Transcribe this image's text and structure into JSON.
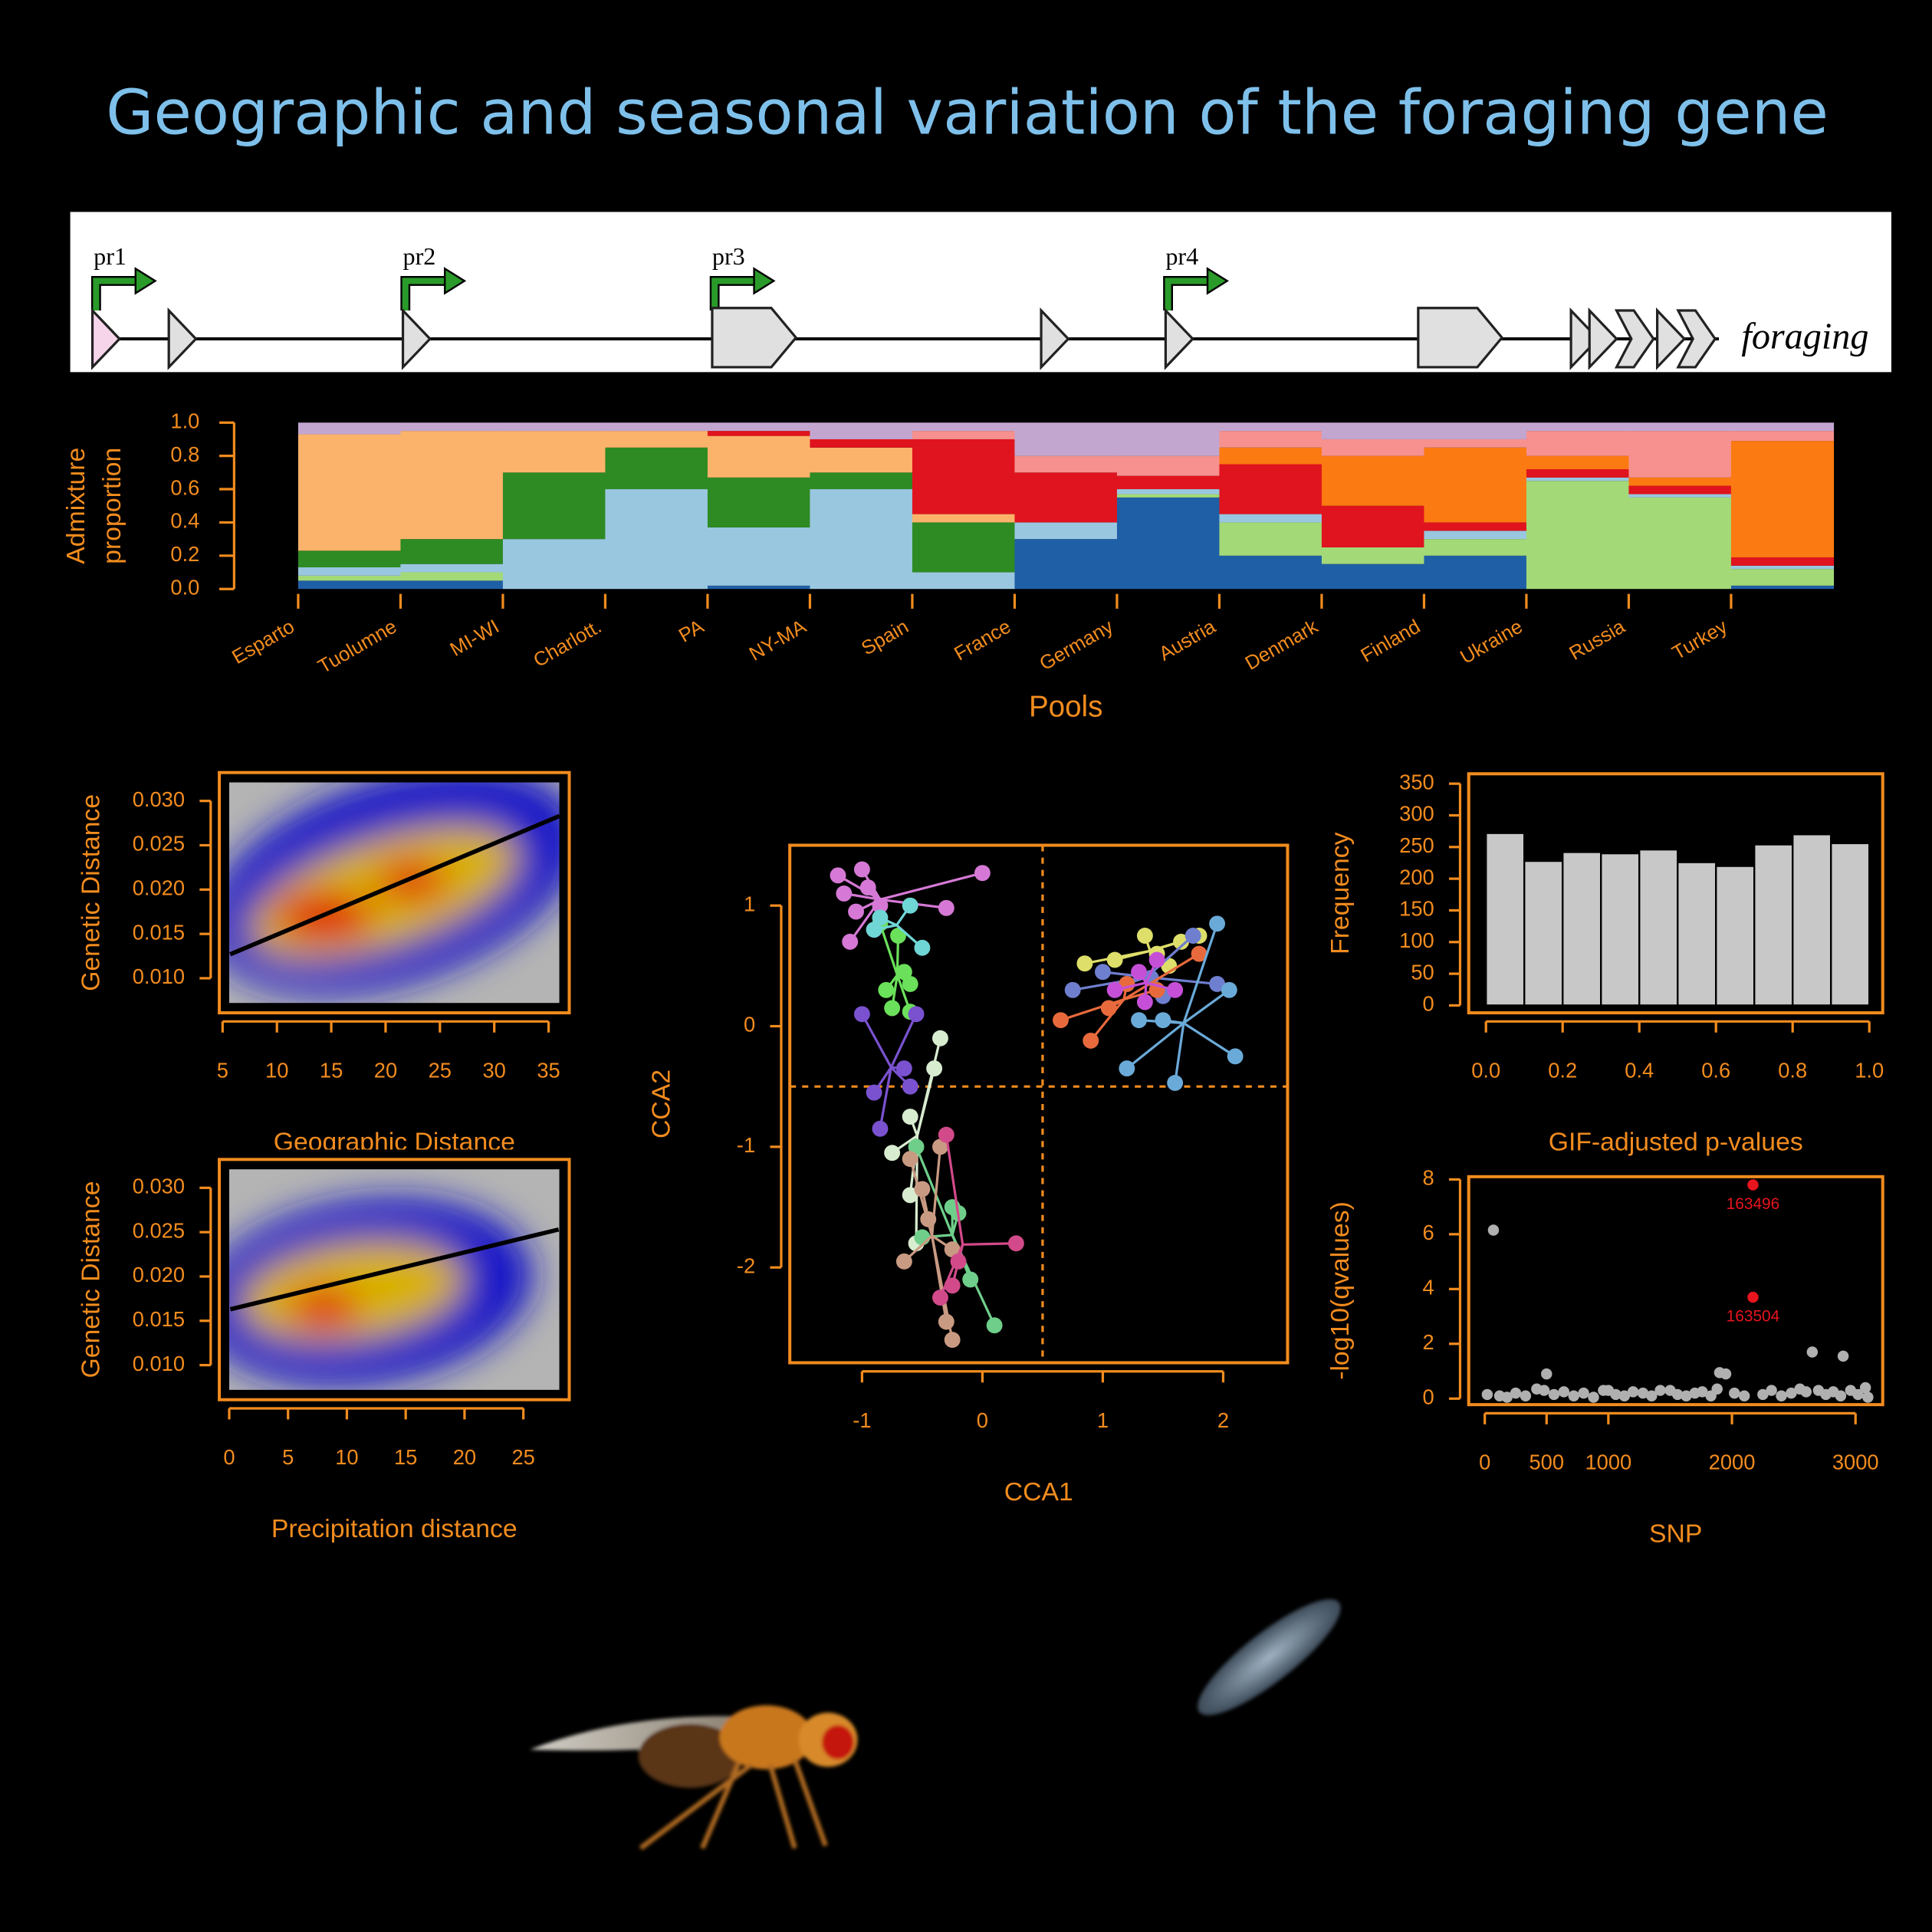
{
  "title": "Geographic and seasonal variation of the foraging gene",
  "gene": {
    "promoters": [
      "pr1",
      "pr2",
      "pr3",
      "pr4"
    ],
    "name": "foraging"
  },
  "chart_data": [
    {
      "type": "bar",
      "stacked": true,
      "xlabel": "Pools",
      "ylabel": [
        "Admixture",
        "proportion"
      ],
      "categories": [
        "Esparto",
        "Tuolumne",
        "MI-WI",
        "Charlott.",
        "PA",
        "NY-MA",
        "Spain",
        "France",
        "Germany",
        "Austria",
        "Denmark",
        "Finland",
        "Ukraine",
        "Russia",
        "Turkey"
      ],
      "series": [
        {
          "color": "#1f5fa6",
          "values": [
            0.05,
            0.05,
            0,
            0,
            0.02,
            0,
            0,
            0.3,
            0.55,
            0.2,
            0.15,
            0.2,
            0,
            0,
            0.02
          ]
        },
        {
          "color": "#a3d977",
          "values": [
            0.03,
            0.05,
            0,
            0,
            0,
            0,
            0,
            0,
            0.02,
            0.2,
            0.1,
            0.1,
            0.65,
            0.55,
            0.1
          ]
        },
        {
          "color": "#9ac7e0",
          "values": [
            0.05,
            0.05,
            0.3,
            0.6,
            0.35,
            0.6,
            0.1,
            0.1,
            0.03,
            0.05,
            0,
            0.05,
            0.02,
            0.02,
            0.02
          ]
        },
        {
          "color": "#2e8b23",
          "values": [
            0.1,
            0.15,
            0.4,
            0.25,
            0.3,
            0.1,
            0.3,
            0,
            0,
            0,
            0,
            0,
            0,
            0,
            0
          ]
        },
        {
          "color": "#fbb36b",
          "values": [
            0.7,
            0.65,
            0.25,
            0.1,
            0.25,
            0.15,
            0.05,
            0,
            0,
            0,
            0,
            0,
            0,
            0,
            0
          ]
        },
        {
          "color": "#e0141e",
          "values": [
            0,
            0,
            0,
            0,
            0.03,
            0.05,
            0.45,
            0.3,
            0.08,
            0.3,
            0.25,
            0.05,
            0.05,
            0.05,
            0.05
          ]
        },
        {
          "color": "#fb7a12",
          "values": [
            0,
            0,
            0,
            0,
            0,
            0,
            0,
            0,
            0,
            0.1,
            0.3,
            0.45,
            0.08,
            0.05,
            0.7
          ]
        },
        {
          "color": "#f6918f",
          "values": [
            0,
            0,
            0,
            0,
            0,
            0,
            0.05,
            0.1,
            0.12,
            0.1,
            0.1,
            0.05,
            0.15,
            0.28,
            0.06
          ]
        },
        {
          "color": "#c3a6d0",
          "values": [
            0.07,
            0.05,
            0.05,
            0.05,
            0.05,
            0.1,
            0.05,
            0.2,
            0.2,
            0.05,
            0.1,
            0.1,
            0.05,
            0.05,
            0.05
          ]
        }
      ],
      "ylim": [
        0,
        1
      ],
      "yticks": [
        {
          "value": 0,
          "label": "0.0"
        },
        0.2,
        0.4,
        0.6,
        0.8,
        {
          "value": 1,
          "label": "1.0"
        }
      ]
    },
    {
      "type": "density",
      "xlabel": "Geographic Distance",
      "ylabel": "Genetic Distance",
      "line": {
        "x": [
          5.7,
          36
        ],
        "y": [
          0.0127,
          0.0283
        ]
      },
      "line_color": "#000000",
      "xlim": [
        4.7,
        36.9
      ],
      "ylim": [
        0.0061,
        0.0332
      ],
      "xticks": [
        5,
        10,
        15,
        20,
        25,
        30,
        35
      ],
      "yticks": [
        {
          "value": 0.01,
          "label": "0.010"
        },
        0.015,
        {
          "value": 0.02,
          "label": "0.020"
        },
        0.025,
        {
          "value": 0.03,
          "label": "0.030"
        }
      ]
    },
    {
      "type": "density",
      "xlabel": "Precipitation distance",
      "ylabel": "Genetic Distance",
      "line": {
        "x": [
          0.1,
          28
        ],
        "y": [
          0.0163,
          0.0253
        ]
      },
      "line_color": "#000000",
      "xlim": [
        -0.84,
        28.9
      ],
      "ylim": [
        0.0061,
        0.0332
      ],
      "xticks": [
        0,
        5,
        10,
        15,
        20,
        25
      ],
      "yticks": [
        {
          "value": 0.01,
          "label": "0.010"
        },
        0.015,
        {
          "value": 0.02,
          "label": "0.020"
        },
        0.025,
        {
          "value": 0.03,
          "label": "0.030"
        }
      ]
    },
    {
      "type": "scatter",
      "spider": true,
      "xlabel": "CCA1",
      "ylabel": "CCA2",
      "reference_lines": {
        "x": 0.5,
        "y": -0.5
      },
      "series": [
        {
          "color": "#d679d6",
          "x": [
            -1.2,
            -1.15,
            -1.05,
            -1.0,
            -0.95,
            -0.9,
            -1.1,
            -0.85,
            0.0,
            -0.3
          ],
          "values": [
            1.25,
            1.1,
            0.95,
            1.3,
            1.15,
            0.8,
            0.7,
            1.0,
            1.27,
            0.98
          ]
        },
        {
          "color": "#6be05a",
          "x": [
            -0.85,
            -0.7,
            -0.65,
            -0.6,
            -0.8,
            -0.75,
            -0.6
          ],
          "values": [
            0.85,
            0.75,
            0.45,
            0.35,
            0.3,
            0.15,
            0.12
          ]
        },
        {
          "color": "#6fd5d5",
          "x": [
            -0.9,
            -0.6,
            -0.5,
            -0.85
          ],
          "values": [
            0.8,
            1.0,
            0.65,
            0.9
          ]
        },
        {
          "color": "#7a52d0",
          "x": [
            -1.0,
            -0.65,
            -0.6,
            -0.9,
            -0.85,
            -0.55
          ],
          "values": [
            0.1,
            -0.35,
            -0.5,
            -0.55,
            -0.85,
            0.1
          ]
        },
        {
          "color": "#d8ecd0",
          "x": [
            -0.35,
            -0.4,
            -0.6,
            -0.75,
            -0.55,
            -0.6
          ],
          "values": [
            -0.1,
            -0.35,
            -0.75,
            -1.05,
            -1.8,
            -1.4
          ]
        },
        {
          "color": "#6fcf8a",
          "x": [
            -0.55,
            -0.25,
            -0.2,
            -0.5,
            -0.1,
            0.1
          ],
          "values": [
            -1.0,
            -1.5,
            -1.55,
            -1.75,
            -2.1,
            -2.48
          ]
        },
        {
          "color": "#c99a82",
          "x": [
            -0.35,
            -0.6,
            -0.5,
            -0.25,
            -0.45,
            -0.65,
            -0.3,
            -0.25
          ],
          "values": [
            -1.0,
            -1.1,
            -1.35,
            -1.85,
            -1.6,
            -1.95,
            -2.45,
            -2.6
          ]
        },
        {
          "color": "#d24a8a",
          "x": [
            -0.3,
            -0.25,
            0.28,
            -0.35,
            -0.2
          ],
          "values": [
            -0.9,
            -2.15,
            -1.8,
            -2.25,
            -1.95
          ]
        },
        {
          "color": "#dede6a",
          "x": [
            0.85,
            1.1,
            1.35,
            1.45,
            1.55,
            1.65,
            1.8
          ],
          "values": [
            0.52,
            0.55,
            0.75,
            0.6,
            0.5,
            0.7,
            0.75
          ]
        },
        {
          "color": "#6f7fcf",
          "x": [
            0.75,
            1.0,
            1.2,
            1.5,
            1.75,
            1.95,
            1.4
          ],
          "values": [
            0.3,
            0.45,
            0.35,
            0.25,
            0.75,
            0.35,
            0.4
          ]
        },
        {
          "color": "#e86a3c",
          "x": [
            0.65,
            0.9,
            1.05,
            1.45,
            1.8,
            1.2
          ],
          "values": [
            0.05,
            -0.12,
            0.15,
            0.3,
            0.6,
            0.35
          ]
        },
        {
          "color": "#6aaad8",
          "x": [
            1.2,
            1.6,
            1.95,
            2.05,
            2.1,
            1.5,
            1.3
          ],
          "values": [
            -0.35,
            -0.47,
            0.85,
            0.3,
            -0.25,
            0.05,
            0.05
          ]
        },
        {
          "color": "#c64fd8",
          "x": [
            1.3,
            1.45,
            1.6,
            1.35,
            1.1
          ],
          "values": [
            0.45,
            0.55,
            0.3,
            0.2,
            0.3
          ]
        }
      ],
      "xlim": [
        -1.6,
        2.535
      ],
      "ylim": [
        -2.79,
        1.5
      ],
      "xticks": [
        -1,
        0,
        1,
        2
      ],
      "yticks": [
        -2,
        -1,
        0,
        1
      ]
    },
    {
      "type": "histogram",
      "xlabel": "GIF-adjusted p-values",
      "ylabel": "Frequency",
      "color": "#c8c8c8",
      "bins": [
        0,
        0.1,
        0.2,
        0.3,
        0.4,
        0.5,
        0.6,
        0.7,
        0.8,
        0.9,
        1.0
      ],
      "values": [
        272,
        228,
        242,
        240,
        246,
        226,
        220,
        254,
        270,
        256
      ],
      "xlim": [
        -0.045,
        1.035
      ],
      "ylim": [
        -11.7,
        365.6
      ],
      "xticks": [
        {
          "value": 0,
          "label": "0.0"
        },
        0.2,
        0.4,
        0.6,
        0.8,
        {
          "value": 1,
          "label": "1.0"
        }
      ],
      "yticks": [
        0,
        50,
        100,
        150,
        200,
        250,
        300,
        350
      ]
    },
    {
      "type": "scatter",
      "xlabel": "SNP",
      "ylabel": "-log10(qvalues)",
      "series": [
        {
          "color": "#b0b0b0",
          "x": [
            20,
            70,
            120,
            180,
            250,
            330,
            420,
            480,
            500,
            560,
            640,
            720,
            800,
            880,
            960,
            1000,
            1060,
            1130,
            1200,
            1280,
            1350,
            1420,
            1500,
            1560,
            1630,
            1700,
            1760,
            1830,
            1880,
            1900,
            1950,
            2020,
            2100,
            2250,
            2320,
            2400,
            2480,
            2550,
            2600,
            2650,
            2700,
            2760,
            2820,
            2880,
            2900,
            2960,
            3020,
            3080,
            3100
          ],
          "values": [
            0.15,
            6.15,
            0.1,
            0.05,
            0.2,
            0.1,
            0.35,
            0.3,
            0.9,
            0.15,
            0.25,
            0.1,
            0.2,
            0.05,
            0.3,
            0.3,
            0.15,
            0.1,
            0.25,
            0.2,
            0.1,
            0.3,
            0.3,
            0.15,
            0.1,
            0.2,
            0.25,
            0.1,
            0.35,
            0.95,
            0.9,
            0.2,
            0.1,
            0.15,
            0.3,
            0.1,
            0.2,
            0.35,
            0.25,
            1.7,
            0.3,
            0.15,
            0.25,
            0.1,
            1.55,
            0.3,
            0.15,
            0.4,
            0.05
          ]
        },
        {
          "color": "#e8141e",
          "x": [
            2170,
            2170
          ],
          "values": [
            7.8,
            3.7
          ],
          "point_labels": [
            "163496",
            "163504"
          ]
        }
      ],
      "xlim": [
        -130,
        3220
      ],
      "ylim": [
        -0.22,
        8.1
      ],
      "xticks": [
        0,
        500,
        1000,
        2000,
        3000
      ],
      "yticks": [
        0,
        2,
        4,
        6,
        8
      ]
    }
  ]
}
